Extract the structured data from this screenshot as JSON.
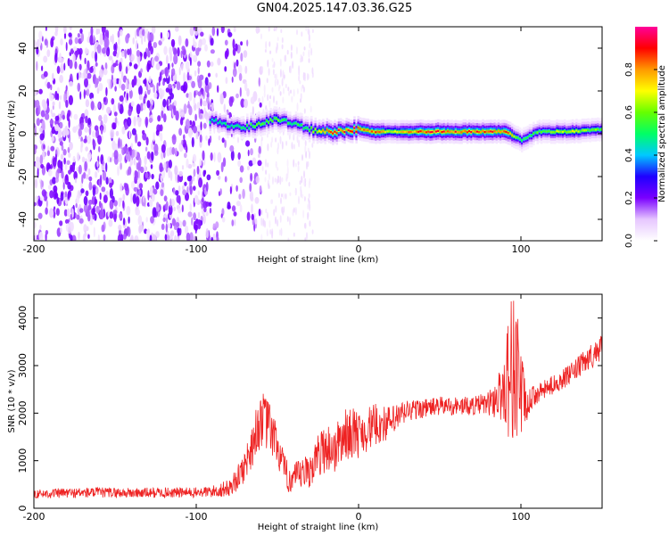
{
  "figure": {
    "title": "GN04.2025.147.03.36.G25"
  },
  "chart_data": [
    {
      "type": "heatmap",
      "title": "",
      "xlabel": "Height of straight line (km)",
      "ylabel": "Frequency (Hz)",
      "xlim": [
        -200,
        150
      ],
      "ylim": [
        -50,
        50
      ],
      "xticks": [
        -200,
        -100,
        0,
        100
      ],
      "yticks": [
        -40,
        -20,
        0,
        20,
        40
      ],
      "colorbar": {
        "label": "Normalized spectral amplitude",
        "range": [
          0,
          1
        ],
        "ticks": [
          0.0,
          0.2,
          0.4,
          0.6,
          0.8
        ],
        "colormap": [
          "#ffffff",
          "#e6c6ff",
          "#7a00ff",
          "#1f00ff",
          "#00c8ff",
          "#00ff66",
          "#66ff00",
          "#ffff00",
          "#ff9900",
          "#ff0000",
          "#ff0099"
        ]
      },
      "noise_region_x": [
        -200,
        -70
      ],
      "band": {
        "x": [
          -90,
          -80,
          -70,
          -60,
          -50,
          -40,
          -30,
          -20,
          -10,
          0,
          10,
          20,
          40,
          60,
          80,
          90,
          100,
          110,
          130,
          150
        ],
        "center_freq": [
          6,
          4,
          3,
          5,
          7,
          5,
          2,
          1,
          1,
          2,
          1,
          1,
          1,
          1,
          1,
          1,
          -3,
          1,
          1,
          2
        ],
        "peak_amplitude": [
          0.5,
          0.5,
          0.55,
          0.6,
          0.6,
          0.55,
          0.6,
          0.9,
          0.9,
          0.9,
          0.85,
          0.7,
          0.9,
          0.9,
          0.9,
          0.9,
          0.5,
          0.6,
          0.7,
          0.6
        ]
      }
    },
    {
      "type": "line",
      "title": "",
      "xlabel": "Height of straight line (km)",
      "ylabel": "SNR (10 * v/v)",
      "xlim": [
        -200,
        150
      ],
      "ylim": [
        0,
        4500
      ],
      "xticks": [
        -200,
        -100,
        0,
        100
      ],
      "yticks": [
        0,
        1000,
        2000,
        3000,
        4000
      ],
      "series": [
        {
          "color": "#ee2222",
          "x": [
            -200,
            -180,
            -160,
            -140,
            -120,
            -100,
            -90,
            -80,
            -75,
            -70,
            -65,
            -60,
            -55,
            -50,
            -45,
            -40,
            -35,
            -30,
            -25,
            -20,
            -15,
            -10,
            -5,
            0,
            10,
            20,
            30,
            40,
            50,
            60,
            70,
            80,
            88,
            92,
            95,
            98,
            100,
            102,
            104,
            106,
            110,
            120,
            130,
            140,
            150
          ],
          "y": [
            300,
            320,
            330,
            320,
            330,
            330,
            350,
            420,
            600,
            900,
            1400,
            1900,
            1700,
            1300,
            700,
            600,
            700,
            800,
            1100,
            1300,
            1200,
            1500,
            1600,
            1550,
            1750,
            1800,
            2050,
            2100,
            2150,
            2150,
            2150,
            2200,
            2400,
            2800,
            3000,
            2900,
            2500,
            2200,
            2100,
            2300,
            2400,
            2600,
            2800,
            3100,
            3400
          ],
          "noise": [
            90,
            110,
            110,
            110,
            110,
            110,
            130,
            180,
            250,
            350,
            500,
            600,
            550,
            450,
            350,
            350,
            350,
            380,
            450,
            550,
            500,
            550,
            550,
            500,
            450,
            350,
            250,
            200,
            200,
            200,
            200,
            250,
            600,
            1300,
            1700,
            1500,
            1100,
            600,
            300,
            250,
            200,
            200,
            220,
            250,
            280
          ]
        }
      ]
    }
  ]
}
